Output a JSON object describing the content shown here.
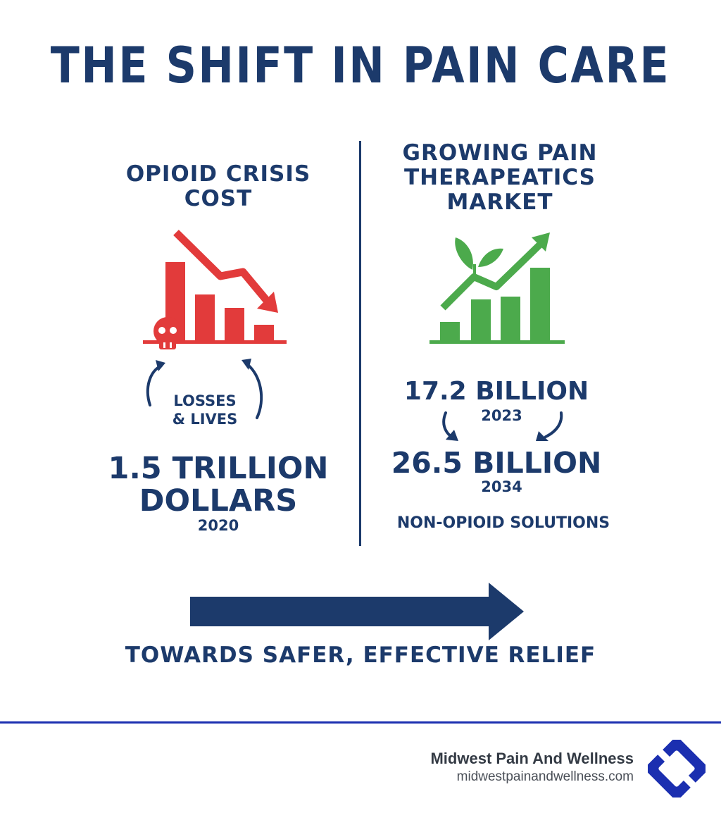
{
  "title": "THE SHIFT IN PAIN CARE",
  "left": {
    "heading_line1": "OPIOID CRISIS",
    "heading_line2": "COST",
    "cycle_line1": "LOSSES",
    "cycle_line2": "& LIVES",
    "amount_line1": "1.5 TRILLION",
    "amount_line2": "DOLLARS",
    "year": "2020",
    "icon": "declining-bar-chart-with-skull-icon",
    "color": "#e23b3b"
  },
  "right": {
    "heading_line1": "GROWING PAIN",
    "heading_line2": "THERAPEATICS",
    "heading_line3": "MARKET",
    "value_2023": "17.2 BILLION",
    "year_2023": "2023",
    "value_2034": "26.5 BILLION",
    "year_2034": "2034",
    "note": "NON-OPIOID SOLUTIONS",
    "icon": "growing-bar-chart-with-leaf-icon",
    "color": "#4caa4c"
  },
  "tagline": "TOWARDS SAFER, EFFECTIVE RELIEF",
  "footer": {
    "brand": "Midwest Pain And Wellness",
    "url": "midwestpainandwellness.com",
    "logo_color": "#1b2fb0"
  },
  "colors": {
    "navy": "#1c3a6b"
  }
}
